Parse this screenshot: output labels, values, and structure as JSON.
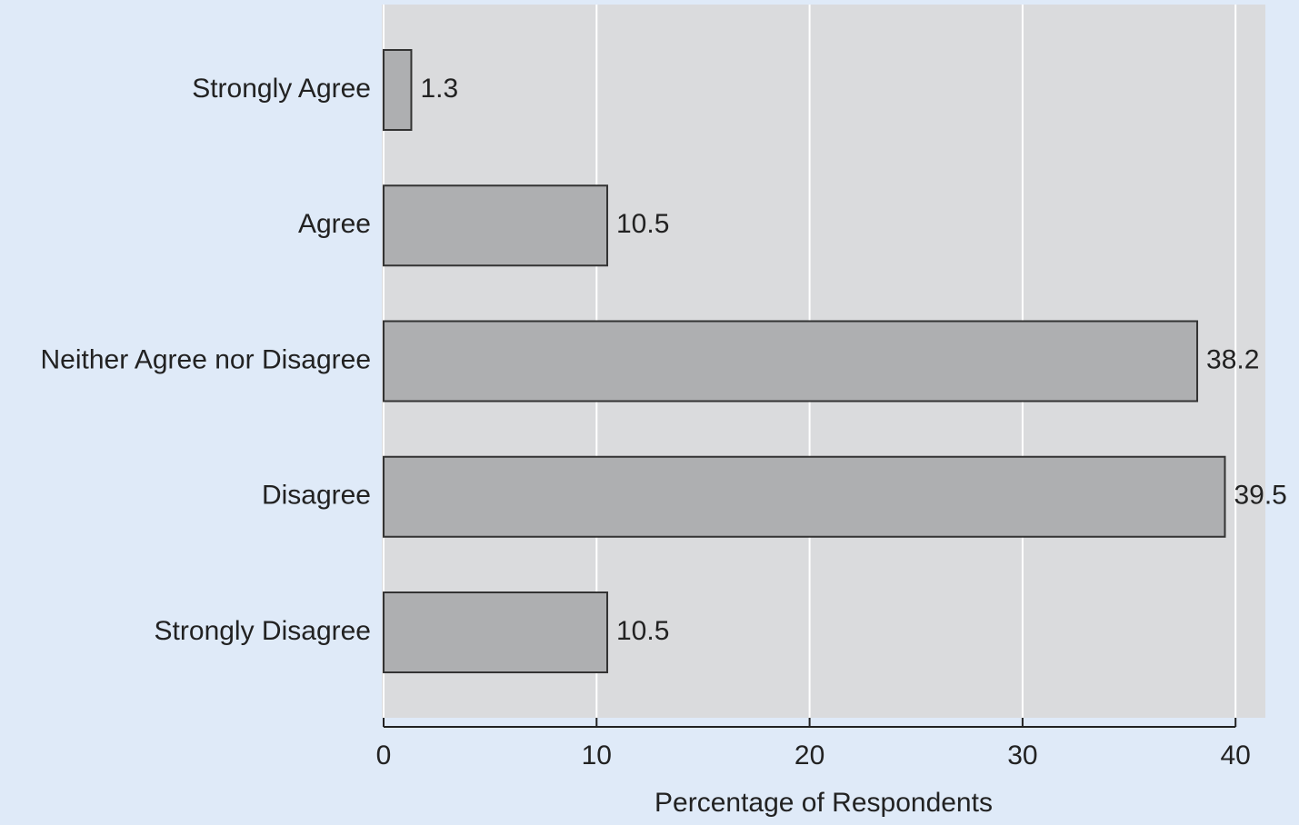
{
  "chart_data": {
    "type": "bar",
    "orientation": "horizontal",
    "x_label": "Percentage of Respondents",
    "categories": [
      "Strongly Agree",
      "Agree",
      "Neither Agree nor Disagree",
      "Disagree",
      "Strongly Disagree"
    ],
    "values": [
      1.3,
      10.5,
      38.2,
      39.5,
      10.5
    ],
    "color": "#aeafb1",
    "xlim": [
      0,
      41.4
    ],
    "xticks": [
      0,
      10,
      20,
      30,
      40
    ],
    "grid": true
  }
}
